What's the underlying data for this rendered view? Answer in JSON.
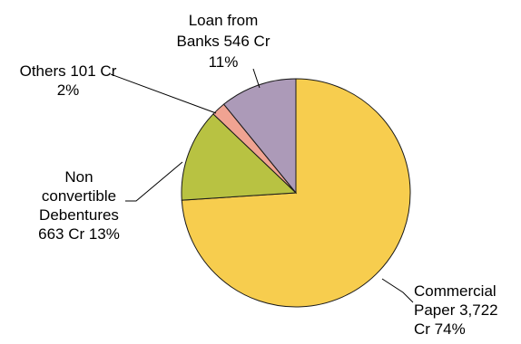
{
  "chart_data": {
    "type": "pie",
    "slices": [
      {
        "label_lines": [
          "Commercial",
          "Paper 3,722",
          "Cr 74%"
        ],
        "amount_cr": 3722,
        "percent": 74,
        "color": "#F7CD4E"
      },
      {
        "label_lines": [
          "Non",
          "convertible",
          "Debentures",
          "663 Cr 13%"
        ],
        "amount_cr": 663,
        "percent": 13,
        "color": "#B8C242"
      },
      {
        "label_lines": [
          "Others 101 Cr",
          "2%"
        ],
        "amount_cr": 101,
        "percent": 2,
        "color": "#F0A392"
      },
      {
        "label_lines": [
          "Loan from",
          "Banks 546 Cr",
          "11%"
        ],
        "amount_cr": 546,
        "percent": 11,
        "color": "#AC9AB8"
      }
    ],
    "start": "12 o'clock",
    "direction": "clockwise",
    "legend": "none"
  }
}
